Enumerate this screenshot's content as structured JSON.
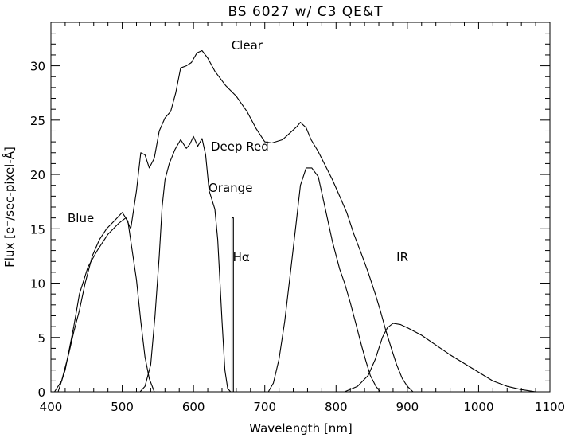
{
  "chart_data": {
    "type": "line",
    "title": "BS 6027 w/ C3 QE&T",
    "xlabel": "Wavelength [nm]",
    "ylabel": "Flux [e⁻/sec-pixel-Å]",
    "xlim": [
      400,
      1100
    ],
    "ylim": [
      0,
      34
    ],
    "x_ticks": [
      400,
      500,
      600,
      700,
      800,
      900,
      1000,
      1100
    ],
    "y_ticks": [
      0,
      5,
      10,
      15,
      20,
      25,
      30
    ],
    "grid": false,
    "legend": "none",
    "annotations": [
      {
        "text": "Clear",
        "x": 675,
        "y": 31.5
      },
      {
        "text": "Deep Red",
        "x": 665,
        "y": 22.2
      },
      {
        "text": "Orange",
        "x": 652,
        "y": 18.4
      },
      {
        "text": "Blue",
        "x": 442,
        "y": 15.6
      },
      {
        "text": "Hα",
        "x": 667,
        "y": 12.0
      },
      {
        "text": "IR",
        "x": 893,
        "y": 12.0
      }
    ],
    "series": [
      {
        "name": "Clear",
        "points": [
          [
            410,
            0
          ],
          [
            420,
            2
          ],
          [
            432,
            6
          ],
          [
            440,
            9
          ],
          [
            452,
            11.5
          ],
          [
            465,
            13
          ],
          [
            480,
            14.5
          ],
          [
            495,
            15.5
          ],
          [
            505,
            16
          ],
          [
            512,
            15
          ],
          [
            520,
            18.5
          ],
          [
            526,
            22
          ],
          [
            532,
            21.8
          ],
          [
            538,
            20.6
          ],
          [
            545,
            21.5
          ],
          [
            552,
            24
          ],
          [
            560,
            25.2
          ],
          [
            568,
            25.8
          ],
          [
            575,
            27.5
          ],
          [
            582,
            29.8
          ],
          [
            590,
            30
          ],
          [
            597,
            30.3
          ],
          [
            605,
            31.2
          ],
          [
            612,
            31.4
          ],
          [
            620,
            30.7
          ],
          [
            630,
            29.5
          ],
          [
            645,
            28.2
          ],
          [
            660,
            27.2
          ],
          [
            675,
            25.8
          ],
          [
            688,
            24.2
          ],
          [
            700,
            23
          ],
          [
            710,
            22.9
          ],
          [
            725,
            23.2
          ],
          [
            735,
            23.8
          ],
          [
            745,
            24.4
          ],
          [
            750,
            24.8
          ],
          [
            758,
            24.3
          ],
          [
            765,
            23.2
          ],
          [
            775,
            22.1
          ],
          [
            785,
            20.8
          ],
          [
            795,
            19.5
          ],
          [
            805,
            18
          ],
          [
            815,
            16.5
          ],
          [
            825,
            14.5
          ],
          [
            835,
            12.8
          ],
          [
            845,
            11
          ],
          [
            855,
            9
          ],
          [
            862,
            7.5
          ],
          [
            870,
            5.6
          ],
          [
            878,
            3.9
          ],
          [
            885,
            2.5
          ],
          [
            893,
            1.2
          ],
          [
            900,
            0.5
          ],
          [
            908,
            0
          ]
        ]
      },
      {
        "name": "Blue",
        "points": [
          [
            405,
            0
          ],
          [
            415,
            1
          ],
          [
            425,
            3.5
          ],
          [
            432,
            5.5
          ],
          [
            440,
            7.5
          ],
          [
            448,
            10
          ],
          [
            458,
            12.5
          ],
          [
            468,
            14
          ],
          [
            478,
            15
          ],
          [
            490,
            15.8
          ],
          [
            500,
            16.5
          ],
          [
            508,
            15.7
          ],
          [
            514,
            13
          ],
          [
            520,
            10.3
          ],
          [
            526,
            6.5
          ],
          [
            532,
            3.2
          ],
          [
            538,
            1.2
          ],
          [
            545,
            0
          ]
        ]
      },
      {
        "name": "Orange",
        "points": [
          [
            525,
            0
          ],
          [
            532,
            0.5
          ],
          [
            540,
            2.5
          ],
          [
            546,
            7
          ],
          [
            552,
            12.5
          ],
          [
            556,
            17
          ],
          [
            560,
            19.5
          ],
          [
            566,
            21
          ],
          [
            574,
            22.3
          ],
          [
            582,
            23.2
          ],
          [
            590,
            22.4
          ],
          [
            595,
            22.8
          ],
          [
            600,
            23.5
          ],
          [
            606,
            22.6
          ],
          [
            612,
            23.3
          ],
          [
            617,
            21.8
          ],
          [
            622,
            18.5
          ],
          [
            630,
            16.8
          ],
          [
            634,
            14
          ],
          [
            640,
            6.5
          ],
          [
            644,
            2
          ],
          [
            648,
            0.3
          ],
          [
            652,
            0
          ]
        ]
      },
      {
        "name": "Deep Red",
        "points": [
          [
            705,
            0
          ],
          [
            712,
            0.8
          ],
          [
            720,
            3
          ],
          [
            728,
            6.5
          ],
          [
            736,
            11
          ],
          [
            744,
            15.5
          ],
          [
            750,
            19
          ],
          [
            758,
            20.6
          ],
          [
            766,
            20.6
          ],
          [
            775,
            19.8
          ],
          [
            785,
            16.8
          ],
          [
            795,
            13.8
          ],
          [
            805,
            11.3
          ],
          [
            812,
            10
          ],
          [
            820,
            8.2
          ],
          [
            828,
            6.2
          ],
          [
            836,
            4.2
          ],
          [
            842,
            2.8
          ],
          [
            848,
            1.5
          ],
          [
            856,
            0.5
          ],
          [
            862,
            0
          ]
        ]
      },
      {
        "name": "IR",
        "points": [
          [
            812,
            0
          ],
          [
            830,
            0.5
          ],
          [
            845,
            1.5
          ],
          [
            855,
            3
          ],
          [
            865,
            5
          ],
          [
            872,
            5.9
          ],
          [
            880,
            6.3
          ],
          [
            890,
            6.2
          ],
          [
            900,
            5.9
          ],
          [
            920,
            5.2
          ],
          [
            940,
            4.3
          ],
          [
            960,
            3.4
          ],
          [
            980,
            2.6
          ],
          [
            1000,
            1.8
          ],
          [
            1020,
            1
          ],
          [
            1040,
            0.5
          ],
          [
            1060,
            0.2
          ],
          [
            1080,
            0
          ]
        ]
      },
      {
        "name": "Hα",
        "points": [
          [
            654,
            0
          ],
          [
            654,
            16
          ],
          [
            656,
            16
          ],
          [
            656,
            0
          ]
        ]
      }
    ]
  }
}
